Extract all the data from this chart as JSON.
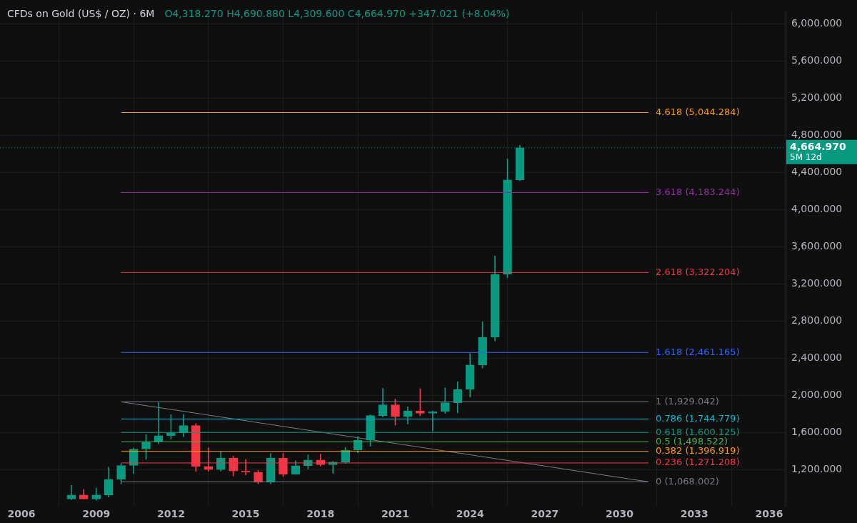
{
  "chart_data": {
    "type": "candlestick",
    "title": "CFDs on Gold (US$ / OZ) · 6M",
    "annotations": [
      "O4,318.270 H4,690.880 L4,309.600 C4,664.970 +347.021 (+8.04%)",
      "5M 12d"
    ],
    "x": [
      2008,
      2008.5,
      2009,
      2009.5,
      2010,
      2010.5,
      2011,
      2011.5,
      2012,
      2012.5,
      2013,
      2013.5,
      2014,
      2014.5,
      2015,
      2015.5,
      2016,
      2016.5,
      2017,
      2017.5,
      2018,
      2018.5,
      2019,
      2019.5,
      2020,
      2020.5,
      2021,
      2021.5,
      2022,
      2022.5,
      2023,
      2023.5,
      2024,
      2024.5,
      2025,
      2025.5,
      2026
    ],
    "ohlc": [
      [
        882,
        1030,
        876,
        926
      ],
      [
        926,
        987,
        882,
        882
      ],
      [
        882,
        1000,
        870,
        926
      ],
      [
        927,
        1226,
        904,
        1096
      ],
      [
        1096,
        1265,
        1044,
        1244
      ],
      [
        1244,
        1431,
        1157,
        1421
      ],
      [
        1421,
        1577,
        1309,
        1500
      ],
      [
        1500,
        1921,
        1478,
        1565
      ],
      [
        1565,
        1792,
        1527,
        1597
      ],
      [
        1597,
        1796,
        1555,
        1675
      ],
      [
        1675,
        1696,
        1180,
        1234
      ],
      [
        1234,
        1434,
        1181,
        1200
      ],
      [
        1200,
        1392,
        1183,
        1322
      ],
      [
        1322,
        1346,
        1131,
        1184
      ],
      [
        1184,
        1308,
        1142,
        1172
      ],
      [
        1172,
        1191,
        1046,
        1061
      ],
      [
        1061,
        1375,
        1046,
        1322
      ],
      [
        1322,
        1375,
        1123,
        1151
      ],
      [
        1151,
        1296,
        1148,
        1242
      ],
      [
        1242,
        1358,
        1204,
        1303
      ],
      [
        1303,
        1366,
        1237,
        1253
      ],
      [
        1253,
        1287,
        1160,
        1282
      ],
      [
        1282,
        1439,
        1266,
        1409
      ],
      [
        1409,
        1557,
        1381,
        1517
      ],
      [
        1517,
        1789,
        1451,
        1781
      ],
      [
        1781,
        2075,
        1764,
        1898
      ],
      [
        1898,
        1959,
        1677,
        1770
      ],
      [
        1770,
        1877,
        1691,
        1829
      ],
      [
        1829,
        2070,
        1780,
        1807
      ],
      [
        1807,
        1830,
        1615,
        1825
      ],
      [
        1825,
        2079,
        1805,
        1920
      ],
      [
        1920,
        2146,
        1810,
        2063
      ],
      [
        2063,
        2450,
        1984,
        2326
      ],
      [
        2326,
        2790,
        2293,
        2625
      ],
      [
        2625,
        3500,
        2584,
        3303
      ],
      [
        3303,
        4545,
        3267,
        4318
      ],
      [
        4318.27,
        4690.88,
        4309.6,
        4664.97
      ]
    ],
    "colors": [
      "#089981",
      "#f23645",
      "#089981",
      "#089981",
      "#089981",
      "#089981",
      "#089981",
      "#089981",
      "#089981",
      "#089981",
      "#f23645",
      "#f23645",
      "#089981",
      "#f23645",
      "#f23645",
      "#f23645",
      "#089981",
      "#f23645",
      "#089981",
      "#089981",
      "#f23645",
      "#089981",
      "#089981",
      "#089981",
      "#089981",
      "#089981",
      "#f23645",
      "#089981",
      "#f23645",
      "#089981",
      "#089981",
      "#089981",
      "#089981",
      "#089981",
      "#089981",
      "#089981",
      "#089981"
    ],
    "series": [
      {
        "type": "line",
        "x": [
          2010,
          2031.16
        ],
        "values": [
          1929,
          1068
        ],
        "color": "#787b86"
      }
    ],
    "xlim": [
      2005.14,
      2036.66
    ],
    "xticks": [
      2006,
      2009,
      2012,
      2015,
      2018,
      2021,
      2024,
      2027,
      2030,
      2033,
      2036
    ],
    "ylim": [
      800,
      6130
    ],
    "yticks": [
      {
        "value": 1200,
        "label": "1,200.000"
      },
      {
        "value": 1600,
        "label": "1,600.000"
      },
      {
        "value": 2000,
        "label": "2,000.000"
      },
      {
        "value": 2400,
        "label": "2,400.000"
      },
      {
        "value": 2800,
        "label": "2,800.000"
      },
      {
        "value": 3200,
        "label": "3,200.000"
      },
      {
        "value": 3600,
        "label": "3,600.000"
      },
      {
        "value": 4000,
        "label": "4,000.000"
      },
      {
        "value": 4400,
        "label": "4,400.000"
      },
      {
        "value": 4800,
        "label": "4,800.000"
      },
      {
        "value": 5200,
        "label": "5,200.000"
      },
      {
        "value": 5600,
        "label": "5,600.000"
      },
      {
        "value": 6000,
        "label": "6,000.000"
      }
    ],
    "ref_lines": [
      {
        "axis": "y",
        "value": 5044.284,
        "label": "4.618 (5,044.284)",
        "color": "#ff9800"
      },
      {
        "axis": "y",
        "value": 4664.97,
        "label": "4,664.970",
        "color": "#089981",
        "line_style": "dotted"
      },
      {
        "axis": "y",
        "value": 4183.244,
        "label": "3.618 (4,183.244)",
        "color": "#9c27b0"
      },
      {
        "axis": "y",
        "value": 3322.204,
        "label": "2.618 (3,322.204)",
        "color": "#f23645"
      },
      {
        "axis": "y",
        "value": 2461.165,
        "label": "1.618 (2,461.165)",
        "color": "#2962ff"
      },
      {
        "axis": "y",
        "value": 1929.042,
        "label": "1 (1,929.042)",
        "color": "#787b86"
      },
      {
        "axis": "y",
        "value": 1744.779,
        "label": "0.786 (1,744.779)",
        "color": "#00bcd4"
      },
      {
        "axis": "y",
        "value": 1600.125,
        "label": "0.618 (1,600.125)",
        "color": "#089981"
      },
      {
        "axis": "y",
        "value": 1498.522,
        "label": "0.5 (1,498.522)",
        "color": "#4caf50"
      },
      {
        "axis": "y",
        "value": 1396.919,
        "label": "0.382 (1,396.919)",
        "color": "#ff9800"
      },
      {
        "axis": "y",
        "value": 1271.208,
        "label": "0.236 (1,271.208)",
        "color": "#f23645"
      },
      {
        "axis": "y",
        "value": 1068.002,
        "label": "0 (1,068.002)",
        "color": "#787b86"
      }
    ],
    "grid": true,
    "legend": false
  }
}
